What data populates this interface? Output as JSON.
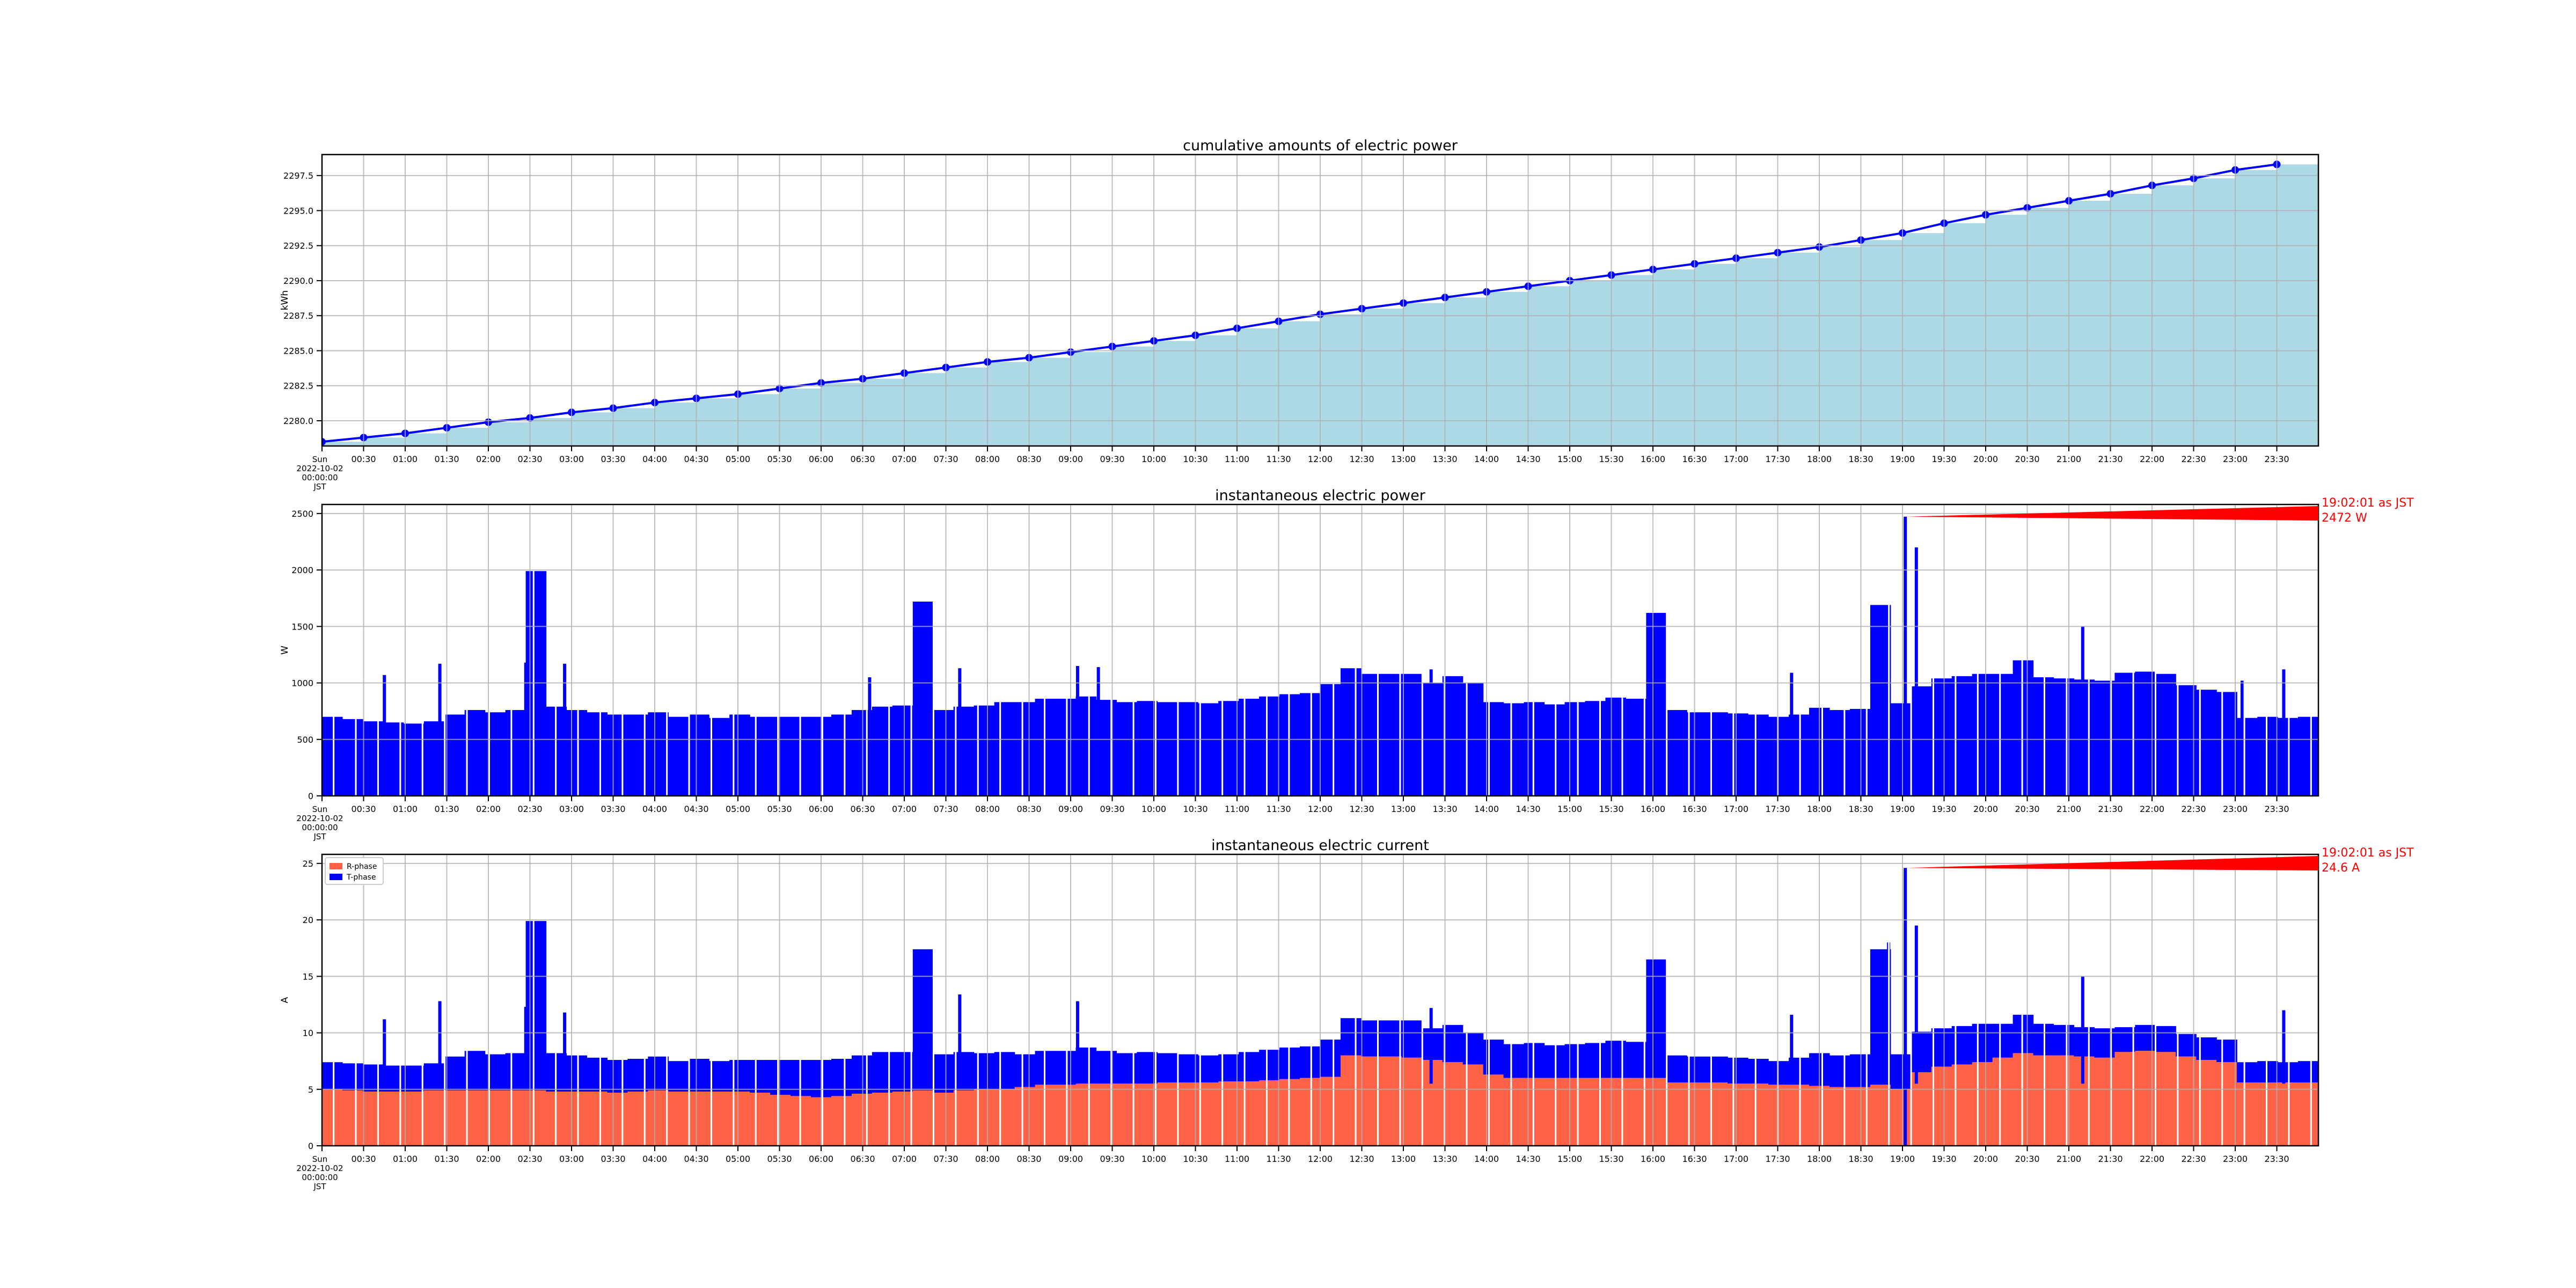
{
  "chart_data": [
    {
      "type": "area",
      "title": "cumulative amounts of electric power",
      "ylabel": "kWh",
      "ylim": [
        2278.2,
        2299.0
      ],
      "yticks": [
        2280.0,
        2282.5,
        2285.0,
        2287.5,
        2290.0,
        2292.5,
        2295.0,
        2297.5
      ],
      "ytick_labels": [
        "2280.0",
        "2282.5",
        "2285.0",
        "2287.5",
        "2290.0",
        "2292.5",
        "2295.0",
        "2297.5"
      ],
      "xlim_hours": [
        0,
        24
      ],
      "x_first_label": [
        "Sun",
        "2022-10-02",
        "00:00:00",
        "JST"
      ],
      "xtick_labels": [
        "00:30",
        "01:00",
        "01:30",
        "02:00",
        "02:30",
        "03:00",
        "03:30",
        "04:00",
        "04:30",
        "05:00",
        "05:30",
        "06:00",
        "06:30",
        "07:00",
        "07:30",
        "08:00",
        "08:30",
        "09:00",
        "09:30",
        "10:00",
        "10:30",
        "11:00",
        "11:30",
        "12:00",
        "12:30",
        "13:00",
        "13:30",
        "14:00",
        "14:30",
        "15:00",
        "15:30",
        "16:00",
        "16:30",
        "17:00",
        "17:30",
        "18:00",
        "18:30",
        "19:00",
        "19:30",
        "20:00",
        "20:30",
        "21:00",
        "21:30",
        "22:00",
        "22:30",
        "23:00",
        "23:30"
      ],
      "grid": true,
      "fill_color": "#add8e6",
      "line_color": "#0000ff",
      "series": [
        {
          "x": [
            "00:00",
            "00:30",
            "01:00",
            "01:30",
            "02:00",
            "02:30",
            "03:00",
            "03:30",
            "04:00",
            "04:30",
            "05:00",
            "05:30",
            "06:00",
            "06:30",
            "07:00",
            "07:30",
            "08:00",
            "08:30",
            "09:00",
            "09:30",
            "10:00",
            "10:30",
            "11:00",
            "11:30",
            "12:00",
            "12:30",
            "13:00",
            "13:30",
            "14:00",
            "14:30",
            "15:00",
            "15:30",
            "16:00",
            "16:30",
            "17:00",
            "17:30",
            "18:00",
            "18:30",
            "19:00",
            "19:30",
            "20:00",
            "20:30",
            "21:00",
            "21:30",
            "22:00",
            "22:30",
            "23:00",
            "23:30"
          ],
          "y": [
            2278.5,
            2278.8,
            2279.1,
            2279.5,
            2279.9,
            2280.2,
            2280.6,
            2280.9,
            2281.3,
            2281.6,
            2281.9,
            2282.3,
            2282.7,
            2283.0,
            2283.4,
            2283.8,
            2284.2,
            2284.5,
            2284.9,
            2285.3,
            2285.7,
            2286.1,
            2286.6,
            2287.1,
            2287.6,
            2288.0,
            2288.4,
            2288.8,
            2289.2,
            2289.6,
            2290.0,
            2290.4,
            2290.8,
            2291.2,
            2291.6,
            2292.0,
            2292.4,
            2292.9,
            2293.4,
            2294.1,
            2294.7,
            2295.2,
            2295.7,
            2296.2,
            2296.8,
            2297.3,
            2297.9,
            2298.3
          ]
        }
      ]
    },
    {
      "type": "bar",
      "title": "instantaneous electric power",
      "ylabel": "W",
      "ylim": [
        0,
        2580
      ],
      "yticks": [
        0,
        500,
        1000,
        1500,
        2000,
        2500
      ],
      "ytick_labels": [
        "0",
        "500",
        "1000",
        "1500",
        "2000",
        "2500"
      ],
      "xlim_hours": [
        0,
        24
      ],
      "x_first_label": [
        "Sun",
        "2022-10-02",
        "00:00:00",
        "JST"
      ],
      "xtick_labels": [
        "00:30",
        "01:00",
        "01:30",
        "02:00",
        "02:30",
        "03:00",
        "03:30",
        "04:00",
        "04:30",
        "05:00",
        "05:30",
        "06:00",
        "06:30",
        "07:00",
        "07:30",
        "08:00",
        "08:30",
        "09:00",
        "09:30",
        "10:00",
        "10:30",
        "11:00",
        "11:30",
        "12:00",
        "12:30",
        "13:00",
        "13:30",
        "14:00",
        "14:30",
        "15:00",
        "15:30",
        "16:00",
        "16:30",
        "17:00",
        "17:30",
        "18:00",
        "18:30",
        "19:00",
        "19:30",
        "20:00",
        "20:30",
        "21:00",
        "21:30",
        "22:00",
        "22:30",
        "23:00",
        "23:30"
      ],
      "grid": true,
      "color": "#0000ff",
      "bins_per_hour": 4,
      "values": [
        700,
        680,
        660,
        650,
        640,
        660,
        720,
        760,
        740,
        760,
        1990,
        790,
        760,
        740,
        720,
        720,
        740,
        700,
        720,
        690,
        720,
        700,
        700,
        700,
        700,
        720,
        760,
        790,
        800,
        1720,
        760,
        790,
        800,
        830,
        830,
        860,
        860,
        880,
        850,
        830,
        840,
        830,
        830,
        820,
        840,
        860,
        880,
        900,
        910,
        990,
        1130,
        1080,
        1080,
        1080,
        1000,
        1060,
        1000,
        830,
        820,
        830,
        810,
        830,
        840,
        870,
        860,
        1620,
        760,
        740,
        740,
        730,
        720,
        700,
        720,
        780,
        760,
        770,
        1690,
        820,
        970,
        1040,
        1060,
        1080,
        1080,
        1200,
        1050,
        1040,
        1030,
        1020,
        1090,
        1100,
        1080,
        980,
        940,
        920,
        690,
        700,
        690,
        700
      ],
      "spikes": [
        {
          "time": "00:45",
          "value": 1070
        },
        {
          "time": "01:25",
          "value": 1170
        },
        {
          "time": "02:27",
          "value": 1180
        },
        {
          "time": "02:55",
          "value": 1170
        },
        {
          "time": "06:35",
          "value": 1050
        },
        {
          "time": "07:40",
          "value": 1130
        },
        {
          "time": "09:05",
          "value": 1150
        },
        {
          "time": "09:20",
          "value": 1140
        },
        {
          "time": "13:20",
          "value": 1120
        },
        {
          "time": "17:40",
          "value": 1090
        },
        {
          "time": "18:50",
          "value": 1480
        },
        {
          "time": "19:10",
          "value": 2200
        },
        {
          "time": "21:10",
          "value": 1500
        },
        {
          "time": "23:05",
          "value": 1020
        },
        {
          "time": "23:35",
          "value": 1120
        }
      ],
      "annotation": {
        "text_line1": "19:02:01 as JST",
        "text_line2": "2472 W",
        "time": "19:02:01",
        "value": 2472,
        "color": "#ff0000"
      }
    },
    {
      "type": "area",
      "title": "instantaneous electric current",
      "ylabel": "A",
      "ylim": [
        0,
        25.8
      ],
      "yticks": [
        0,
        5,
        10,
        15,
        20,
        25
      ],
      "ytick_labels": [
        "0",
        "5",
        "10",
        "15",
        "20",
        "25"
      ],
      "xlim_hours": [
        0,
        24
      ],
      "x_first_label": [
        "Sun",
        "2022-10-02",
        "00:00:00",
        "JST"
      ],
      "xtick_labels": [
        "00:30",
        "01:00",
        "01:30",
        "02:00",
        "02:30",
        "03:00",
        "03:30",
        "04:00",
        "04:30",
        "05:00",
        "05:30",
        "06:00",
        "06:30",
        "07:00",
        "07:30",
        "08:00",
        "08:30",
        "09:00",
        "09:30",
        "10:00",
        "10:30",
        "11:00",
        "11:30",
        "12:00",
        "12:30",
        "13:00",
        "13:30",
        "14:00",
        "14:30",
        "15:00",
        "15:30",
        "16:00",
        "16:30",
        "17:00",
        "17:30",
        "18:00",
        "18:30",
        "19:00",
        "19:30",
        "20:00",
        "20:30",
        "21:00",
        "21:30",
        "22:00",
        "22:30",
        "23:00",
        "23:30"
      ],
      "grid": true,
      "legend_position": "top-left",
      "bins_per_hour": 4,
      "stacked": true,
      "series": [
        {
          "name": "R-phase",
          "color": "#ff6347",
          "values": [
            5.0,
            4.9,
            4.8,
            4.8,
            4.8,
            4.9,
            4.9,
            4.9,
            4.9,
            4.9,
            4.9,
            4.8,
            4.8,
            4.8,
            4.7,
            4.8,
            4.9,
            4.8,
            4.8,
            4.8,
            4.8,
            4.7,
            4.5,
            4.4,
            4.3,
            4.4,
            4.6,
            4.7,
            4.8,
            4.9,
            4.7,
            4.9,
            5.0,
            5.0,
            5.2,
            5.4,
            5.4,
            5.5,
            5.5,
            5.5,
            5.5,
            5.6,
            5.6,
            5.6,
            5.7,
            5.7,
            5.8,
            5.9,
            6.0,
            6.1,
            8.0,
            7.9,
            7.9,
            7.8,
            7.6,
            7.4,
            7.2,
            6.3,
            6.0,
            6.0,
            6.0,
            6.0,
            6.0,
            6.0,
            6.0,
            6.0,
            5.6,
            5.6,
            5.6,
            5.5,
            5.5,
            5.4,
            5.4,
            5.3,
            5.2,
            5.2,
            5.4,
            5.0,
            6.5,
            7.0,
            7.2,
            7.4,
            7.8,
            8.2,
            8.0,
            8.0,
            7.9,
            7.8,
            8.3,
            8.4,
            8.3,
            7.9,
            7.6,
            7.4,
            5.6,
            5.6,
            5.6,
            5.6
          ]
        },
        {
          "name": "T-phase",
          "color": "#0000ff",
          "values": [
            2.4,
            2.4,
            2.4,
            2.3,
            2.3,
            2.4,
            3.0,
            3.5,
            3.2,
            3.3,
            15.0,
            3.4,
            3.2,
            3.0,
            2.9,
            2.9,
            3.0,
            2.7,
            2.9,
            2.7,
            2.8,
            2.9,
            3.1,
            3.2,
            3.3,
            3.3,
            3.4,
            3.6,
            3.5,
            12.5,
            3.4,
            3.4,
            3.2,
            3.3,
            2.9,
            3.0,
            3.0,
            3.2,
            2.9,
            2.7,
            2.8,
            2.6,
            2.5,
            2.4,
            2.4,
            2.6,
            2.7,
            2.8,
            2.8,
            3.3,
            3.3,
            3.2,
            3.2,
            3.3,
            2.8,
            3.3,
            2.8,
            3.1,
            3.0,
            3.1,
            2.9,
            3.0,
            3.1,
            3.3,
            3.2,
            10.5,
            2.4,
            2.3,
            2.3,
            2.3,
            2.2,
            2.1,
            2.4,
            2.9,
            2.8,
            2.9,
            12.0,
            3.1,
            3.6,
            3.4,
            3.4,
            3.4,
            3.0,
            3.4,
            2.8,
            2.7,
            2.6,
            2.6,
            2.2,
            2.3,
            2.3,
            2.0,
            2.0,
            2.0,
            1.8,
            1.9,
            1.8,
            1.9
          ]
        }
      ],
      "spikes": [
        {
          "time": "00:45",
          "value": 11.2
        },
        {
          "time": "01:25",
          "value": 12.8
        },
        {
          "time": "02:27",
          "value": 12.3
        },
        {
          "time": "02:55",
          "value": 11.8
        },
        {
          "time": "07:40",
          "value": 13.4
        },
        {
          "time": "09:05",
          "value": 12.8
        },
        {
          "time": "13:20",
          "value": 12.2
        },
        {
          "time": "17:40",
          "value": 11.6
        },
        {
          "time": "18:50",
          "value": 18.0
        },
        {
          "time": "19:10",
          "value": 19.5
        },
        {
          "time": "21:10",
          "value": 15.0
        },
        {
          "time": "23:35",
          "value": 12.0
        }
      ],
      "annotation": {
        "text_line1": "19:02:01 as JST",
        "text_line2": "24.6 A",
        "time": "19:02:01",
        "value": 24.6,
        "color": "#ff0000"
      }
    }
  ]
}
